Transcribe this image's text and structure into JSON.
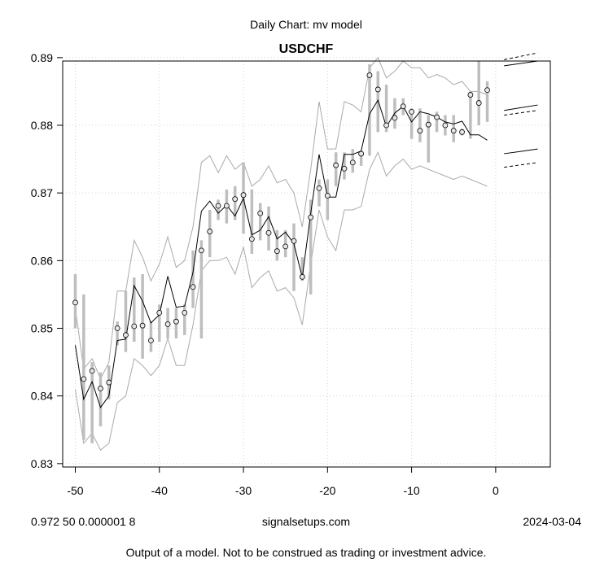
{
  "chart_data": {
    "type": "line",
    "subtitle": "Daily Chart: mv model",
    "title": "USDCHF",
    "xlim": [
      -51.5,
      6.5
    ],
    "ylim": [
      0.8295,
      0.8895
    ],
    "xticks": [
      -50,
      -40,
      -30,
      -20,
      -10,
      0
    ],
    "yticks": [
      0.83,
      0.84,
      0.85,
      0.86,
      0.87,
      0.88,
      0.89
    ],
    "ytick_labels": [
      "0.83",
      "0.84",
      "0.85",
      "0.86",
      "0.87",
      "0.88",
      "0.89"
    ],
    "xtick_labels": [
      "-50",
      "-40",
      "-30",
      "-20",
      "-10",
      "0"
    ],
    "grid": true,
    "grid_style": "dotted",
    "x": [
      -50,
      -49,
      -48,
      -47,
      -46,
      -45,
      -44,
      -43,
      -42,
      -41,
      -40,
      -39,
      -38,
      -37,
      -36,
      -35,
      -34,
      -33,
      -32,
      -31,
      -30,
      -29,
      -28,
      -27,
      -26,
      -25,
      -24,
      -23,
      -22,
      -21,
      -20,
      -19,
      -18,
      -17,
      -16,
      -15,
      -14,
      -13,
      -12,
      -11,
      -10,
      -9,
      -8,
      -7,
      -6,
      -5,
      -4,
      -3,
      -2,
      -1
    ],
    "series": [
      {
        "name": "",
        "kind": "observed_points",
        "values": [
          0.8538,
          0.8425,
          0.8437,
          0.8411,
          0.842,
          0.85,
          0.849,
          0.8503,
          0.8504,
          0.8482,
          0.8523,
          0.8506,
          0.851,
          0.8523,
          0.8561,
          0.8615,
          0.8643,
          0.8681,
          0.8681,
          0.8691,
          0.8697,
          0.8632,
          0.867,
          0.8641,
          0.8614,
          0.8621,
          0.8629,
          0.8576,
          0.8664,
          0.8707,
          0.8696,
          0.8741,
          0.8736,
          0.8745,
          0.8758,
          0.8874,
          0.8853,
          0.88,
          0.8811,
          0.8828,
          0.882,
          0.8792,
          0.8801,
          0.8812,
          0.88,
          0.8792,
          0.879,
          0.8845,
          0.8833,
          0.8852
        ]
      },
      {
        "name": "",
        "kind": "range_bars",
        "low": [
          0.85,
          0.8335,
          0.833,
          0.8355,
          0.8395,
          0.8475,
          0.8465,
          0.848,
          0.8455,
          0.8465,
          0.848,
          0.8485,
          0.8485,
          0.849,
          0.853,
          0.8485,
          0.8605,
          0.866,
          0.8655,
          0.866,
          0.864,
          0.861,
          0.863,
          0.8615,
          0.86,
          0.8605,
          0.8555,
          0.857,
          0.855,
          0.868,
          0.866,
          0.871,
          0.872,
          0.873,
          0.874,
          0.8755,
          0.879,
          0.879,
          0.8795,
          0.8815,
          0.878,
          0.8775,
          0.8745,
          0.879,
          0.8785,
          0.8775,
          0.8785,
          0.878,
          0.88,
          0.8805
        ],
        "high": [
          0.858,
          0.855,
          0.845,
          0.8435,
          0.8445,
          0.851,
          0.8555,
          0.8575,
          0.858,
          0.851,
          0.8535,
          0.853,
          0.853,
          0.8535,
          0.8615,
          0.863,
          0.8675,
          0.869,
          0.8705,
          0.871,
          0.8745,
          0.8705,
          0.8685,
          0.868,
          0.8645,
          0.8645,
          0.8655,
          0.8605,
          0.869,
          0.872,
          0.872,
          0.876,
          0.876,
          0.8765,
          0.876,
          0.889,
          0.888,
          0.886,
          0.884,
          0.884,
          0.8825,
          0.8825,
          0.8815,
          0.882,
          0.8815,
          0.8815,
          0.8795,
          0.885,
          0.8895,
          0.8865
        ]
      },
      {
        "name": "",
        "kind": "model_line",
        "values": [
          0.8475,
          0.8395,
          0.8421,
          0.8383,
          0.84,
          0.8482,
          0.8484,
          0.8563,
          0.854,
          0.8508,
          0.852,
          0.8577,
          0.8531,
          0.8533,
          0.8583,
          0.8673,
          0.8688,
          0.867,
          0.8682,
          0.8666,
          0.8692,
          0.8638,
          0.8645,
          0.8665,
          0.8632,
          0.8642,
          0.8625,
          0.8575,
          0.867,
          0.8757,
          0.8694,
          0.8694,
          0.8757,
          0.8757,
          0.8762,
          0.8817,
          0.8837,
          0.8798,
          0.8818,
          0.8828,
          0.8805,
          0.882,
          0.8817,
          0.8812,
          0.8805,
          0.8802,
          0.8806,
          0.8786,
          0.8786,
          0.8778
        ]
      },
      {
        "name": "",
        "kind": "upper_band",
        "values": [
          0.853,
          0.844,
          0.8455,
          0.8425,
          0.845,
          0.8555,
          0.8555,
          0.863,
          0.8605,
          0.857,
          0.8595,
          0.8635,
          0.859,
          0.86,
          0.865,
          0.8745,
          0.8755,
          0.873,
          0.8755,
          0.8735,
          0.8745,
          0.871,
          0.872,
          0.874,
          0.8715,
          0.872,
          0.87,
          0.865,
          0.8735,
          0.8835,
          0.8765,
          0.8765,
          0.8835,
          0.883,
          0.882,
          0.8885,
          0.89,
          0.887,
          0.888,
          0.8895,
          0.8885,
          0.8885,
          0.887,
          0.8875,
          0.887,
          0.886,
          0.8865,
          0.885,
          0.885,
          0.8845
        ]
      },
      {
        "name": "",
        "kind": "lower_band",
        "values": [
          0.841,
          0.833,
          0.8345,
          0.832,
          0.833,
          0.839,
          0.84,
          0.8455,
          0.8445,
          0.843,
          0.8445,
          0.8485,
          0.8445,
          0.8445,
          0.8505,
          0.8585,
          0.86,
          0.86,
          0.8605,
          0.858,
          0.862,
          0.856,
          0.8575,
          0.8585,
          0.8555,
          0.856,
          0.8545,
          0.8505,
          0.8595,
          0.8675,
          0.8635,
          0.8615,
          0.8675,
          0.8675,
          0.868,
          0.8735,
          0.876,
          0.8725,
          0.874,
          0.875,
          0.8735,
          0.874,
          0.8735,
          0.873,
          0.8725,
          0.872,
          0.8725,
          0.872,
          0.8715,
          0.871
        ]
      }
    ],
    "forecast": {
      "x_range": [
        1,
        5
      ],
      "solid": [
        [
          0.8888,
          0.8895
        ],
        [
          0.8822,
          0.883
        ],
        [
          0.8758,
          0.8765
        ]
      ],
      "dashed": [
        [
          0.8897,
          0.8907
        ],
        [
          0.8815,
          0.8822
        ],
        [
          0.8738,
          0.8745
        ]
      ]
    }
  },
  "footer": {
    "params": "0.972 50 0.000001 8",
    "site": "signalsetups.com",
    "date": "2024-03-04",
    "disclaimer": "Output of a model.  Not to be construed as trading or investment advice."
  }
}
